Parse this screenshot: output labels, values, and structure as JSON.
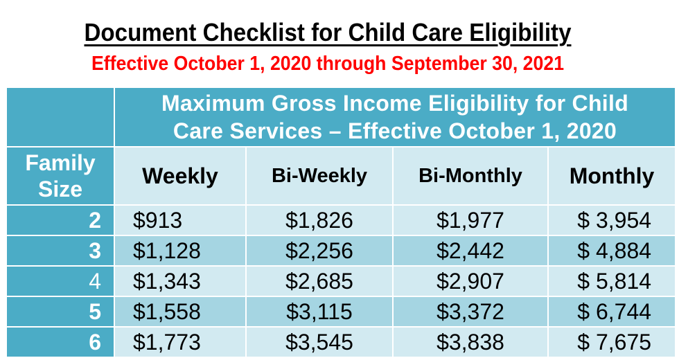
{
  "title": "Document Checklist for Child Care Eligibility",
  "subtitle": "Effective October 1, 2020 through September 30, 2021",
  "table": {
    "banner_line1": "Maximum Gross Income Eligibility for Child",
    "banner_line2": "Care Services – Effective October 1, 2020",
    "family_line1": "Family",
    "family_line2": "Size",
    "columns": [
      "Weekly",
      "Bi-Weekly",
      "Bi-Monthly",
      "Monthly"
    ],
    "rows": [
      {
        "size": "2",
        "weekly": "$913",
        "biweekly": "$1,826",
        "bimonthly": "$1,977",
        "monthly": "$ 3,954"
      },
      {
        "size": "3",
        "weekly": "$1,128",
        "biweekly": "$2,256",
        "bimonthly": "$2,442",
        "monthly": "$ 4,884"
      },
      {
        "size": "4",
        "weekly": "$1,343",
        "biweekly": "$2,685",
        "bimonthly": "$2,907",
        "monthly": "$ 5,814"
      },
      {
        "size": "5",
        "weekly": "$1,558",
        "biweekly": "$3,115",
        "bimonthly": "$3,372",
        "monthly": "$ 6,744"
      },
      {
        "size": "6",
        "weekly": "$1,773",
        "biweekly": "$3,545",
        "bimonthly": "$3,838",
        "monthly": "$ 7,675"
      }
    ]
  },
  "colors": {
    "header": "#4bacc6",
    "row_light": "#d2eaf1",
    "row_dark": "#a5d5e2",
    "subtitle": "#ff0000"
  }
}
